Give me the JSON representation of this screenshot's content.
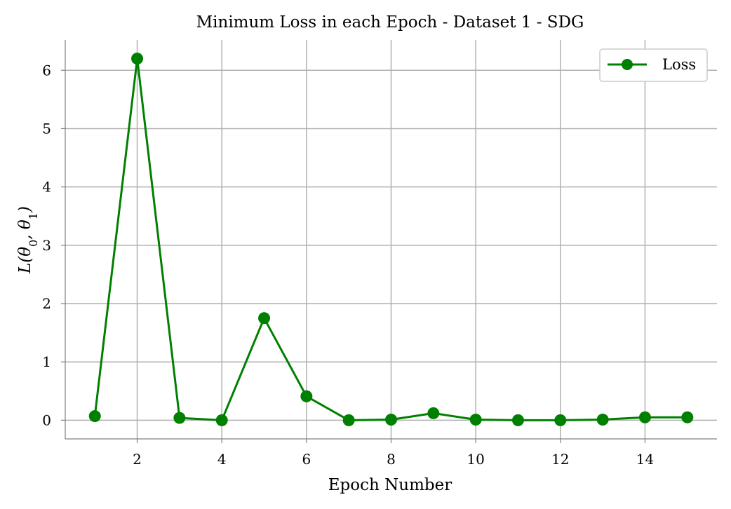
{
  "chart_data": {
    "type": "line",
    "title": "Minimum Loss in each Epoch - Dataset 1 - SDG",
    "xlabel": "Epoch Number",
    "ylabel": "L(θ0, θ1)",
    "x": [
      1,
      2,
      3,
      4,
      5,
      6,
      7,
      8,
      9,
      10,
      11,
      12,
      13,
      14,
      15
    ],
    "series": [
      {
        "name": "Loss",
        "color": "#008000",
        "marker": "circle",
        "values": [
          0.07,
          6.2,
          0.04,
          0.0,
          1.75,
          0.41,
          0.0,
          0.01,
          0.12,
          0.01,
          0.0,
          0.0,
          0.01,
          0.05,
          0.05
        ]
      }
    ],
    "xlim": [
      0.3,
      15.7
    ],
    "ylim": [
      -0.32,
      6.52
    ],
    "xticks": [
      2,
      4,
      6,
      8,
      10,
      12,
      14
    ],
    "yticks": [
      0,
      1,
      2,
      3,
      4,
      5,
      6
    ],
    "grid": true,
    "legend_position": "top-right"
  }
}
